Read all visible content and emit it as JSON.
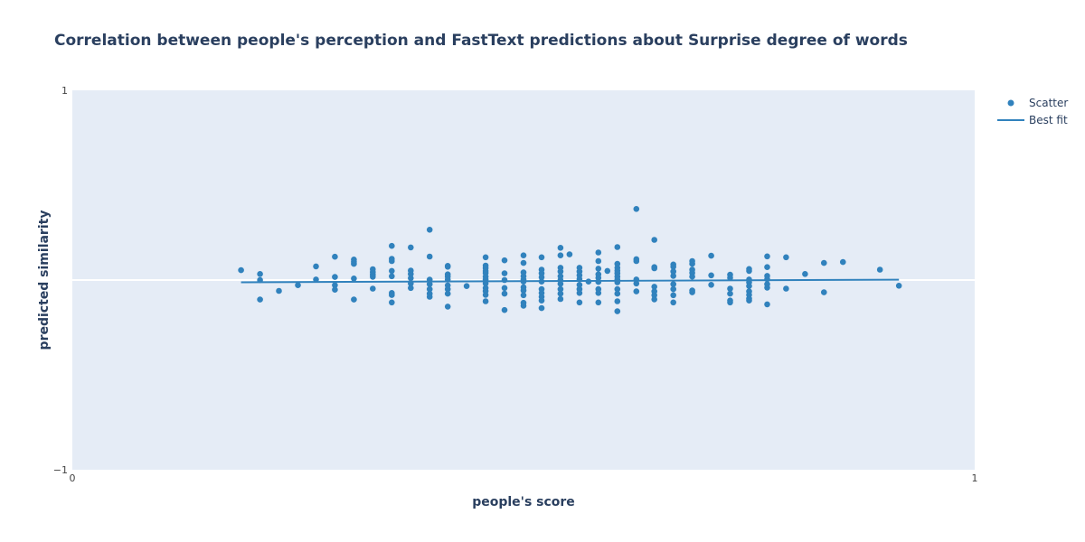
{
  "chart_data": {
    "type": "scatter",
    "title": "Correlation between people's perception and FastText predictions about Surprise degree of words",
    "xlabel": "people's score",
    "ylabel": "predicted similarity",
    "xlim": [
      0,
      1
    ],
    "ylim": [
      -1,
      1
    ],
    "x_ticks": [
      "0",
      "1"
    ],
    "y_ticks": [
      "1",
      "−1"
    ],
    "grid": false,
    "legend_position": "top-right",
    "colors": {
      "plot_bg": "#e5ecf6",
      "marker": "#3182bd",
      "zero_line": "#ffffff"
    },
    "series": [
      {
        "name": "Scatter",
        "mode": "markers",
        "points": [
          [
            0.187,
            0.052
          ],
          [
            0.208,
            0.032
          ],
          [
            0.208,
            0.0
          ],
          [
            0.208,
            -0.103
          ],
          [
            0.229,
            -0.057
          ],
          [
            0.25,
            -0.027
          ],
          [
            0.27,
            0.072
          ],
          [
            0.27,
            0.003
          ],
          [
            0.291,
            0.123
          ],
          [
            0.291,
            0.016
          ],
          [
            0.291,
            -0.027
          ],
          [
            0.291,
            -0.051
          ],
          [
            0.312,
            0.108
          ],
          [
            0.312,
            0.096
          ],
          [
            0.312,
            0.085
          ],
          [
            0.312,
            0.008
          ],
          [
            0.312,
            -0.103
          ],
          [
            0.333,
            0.057
          ],
          [
            0.333,
            0.042
          ],
          [
            0.333,
            0.028
          ],
          [
            0.333,
            0.017
          ],
          [
            0.333,
            -0.045
          ],
          [
            0.354,
            0.18
          ],
          [
            0.354,
            0.112
          ],
          [
            0.354,
            0.1
          ],
          [
            0.354,
            0.048
          ],
          [
            0.354,
            0.02
          ],
          [
            0.354,
            -0.068
          ],
          [
            0.354,
            -0.079
          ],
          [
            0.354,
            -0.118
          ],
          [
            0.375,
            0.172
          ],
          [
            0.375,
            0.05
          ],
          [
            0.375,
            0.032
          ],
          [
            0.375,
            0.01
          ],
          [
            0.375,
            -0.018
          ],
          [
            0.375,
            -0.042
          ],
          [
            0.396,
            0.265
          ],
          [
            0.396,
            0.124
          ],
          [
            0.396,
            0.002
          ],
          [
            0.396,
            -0.022
          ],
          [
            0.396,
            -0.048
          ],
          [
            0.396,
            -0.072
          ],
          [
            0.396,
            -0.088
          ],
          [
            0.416,
            0.075
          ],
          [
            0.416,
            0.07
          ],
          [
            0.416,
            0.03
          ],
          [
            0.416,
            0.018
          ],
          [
            0.416,
            0.003
          ],
          [
            0.416,
            -0.028
          ],
          [
            0.416,
            -0.048
          ],
          [
            0.416,
            -0.072
          ],
          [
            0.416,
            -0.14
          ],
          [
            0.437,
            -0.032
          ],
          [
            0.458,
            0.12
          ],
          [
            0.458,
            0.076
          ],
          [
            0.458,
            0.063
          ],
          [
            0.458,
            0.048
          ],
          [
            0.458,
            0.037
          ],
          [
            0.458,
            0.018
          ],
          [
            0.458,
            0.002
          ],
          [
            0.458,
            -0.018
          ],
          [
            0.458,
            -0.042
          ],
          [
            0.458,
            -0.058
          ],
          [
            0.458,
            -0.078
          ],
          [
            0.458,
            -0.112
          ],
          [
            0.479,
            0.104
          ],
          [
            0.479,
            0.035
          ],
          [
            0.479,
            0.0
          ],
          [
            0.479,
            -0.042
          ],
          [
            0.479,
            -0.072
          ],
          [
            0.479,
            -0.158
          ],
          [
            0.5,
            0.13
          ],
          [
            0.5,
            0.09
          ],
          [
            0.5,
            0.04
          ],
          [
            0.5,
            0.02
          ],
          [
            0.5,
            0.002
          ],
          [
            0.5,
            -0.008
          ],
          [
            0.5,
            -0.038
          ],
          [
            0.5,
            -0.055
          ],
          [
            0.5,
            -0.08
          ],
          [
            0.5,
            -0.12
          ],
          [
            0.5,
            -0.135
          ],
          [
            0.52,
            0.12
          ],
          [
            0.52,
            0.055
          ],
          [
            0.52,
            0.035
          ],
          [
            0.52,
            0.015
          ],
          [
            0.52,
            -0.008
          ],
          [
            0.52,
            -0.048
          ],
          [
            0.52,
            -0.068
          ],
          [
            0.52,
            -0.088
          ],
          [
            0.52,
            -0.108
          ],
          [
            0.52,
            -0.148
          ],
          [
            0.541,
            0.17
          ],
          [
            0.541,
            0.13
          ],
          [
            0.541,
            0.065
          ],
          [
            0.541,
            0.045
          ],
          [
            0.541,
            0.02
          ],
          [
            0.541,
            0.0
          ],
          [
            0.541,
            -0.02
          ],
          [
            0.541,
            -0.048
          ],
          [
            0.541,
            -0.072
          ],
          [
            0.541,
            -0.1
          ],
          [
            0.551,
            0.135
          ],
          [
            0.562,
            0.065
          ],
          [
            0.562,
            0.045
          ],
          [
            0.562,
            0.025
          ],
          [
            0.562,
            0.005
          ],
          [
            0.562,
            -0.025
          ],
          [
            0.562,
            -0.048
          ],
          [
            0.562,
            -0.068
          ],
          [
            0.562,
            -0.118
          ],
          [
            0.572,
            -0.008
          ],
          [
            0.583,
            0.145
          ],
          [
            0.583,
            0.1
          ],
          [
            0.583,
            0.06
          ],
          [
            0.583,
            0.03
          ],
          [
            0.583,
            0.012
          ],
          [
            0.583,
            -0.01
          ],
          [
            0.583,
            -0.048
          ],
          [
            0.583,
            -0.068
          ],
          [
            0.583,
            -0.118
          ],
          [
            0.593,
            0.048
          ],
          [
            0.604,
            0.174
          ],
          [
            0.604,
            0.085
          ],
          [
            0.604,
            0.065
          ],
          [
            0.604,
            0.05
          ],
          [
            0.604,
            0.035
          ],
          [
            0.604,
            0.018
          ],
          [
            0.604,
            0.003
          ],
          [
            0.604,
            -0.012
          ],
          [
            0.604,
            -0.048
          ],
          [
            0.604,
            -0.072
          ],
          [
            0.604,
            -0.112
          ],
          [
            0.604,
            -0.165
          ],
          [
            0.625,
            0.375
          ],
          [
            0.625,
            0.11
          ],
          [
            0.625,
            0.1
          ],
          [
            0.625,
            0.003
          ],
          [
            0.625,
            -0.018
          ],
          [
            0.625,
            -0.06
          ],
          [
            0.645,
            0.212
          ],
          [
            0.645,
            0.068
          ],
          [
            0.645,
            0.062
          ],
          [
            0.645,
            -0.035
          ],
          [
            0.645,
            -0.06
          ],
          [
            0.645,
            -0.08
          ],
          [
            0.645,
            -0.102
          ],
          [
            0.666,
            0.082
          ],
          [
            0.666,
            0.07
          ],
          [
            0.666,
            0.045
          ],
          [
            0.666,
            0.022
          ],
          [
            0.666,
            -0.022
          ],
          [
            0.666,
            -0.048
          ],
          [
            0.666,
            -0.08
          ],
          [
            0.666,
            -0.118
          ],
          [
            0.687,
            0.1
          ],
          [
            0.687,
            0.085
          ],
          [
            0.687,
            0.055
          ],
          [
            0.687,
            0.038
          ],
          [
            0.687,
            0.018
          ],
          [
            0.687,
            -0.055
          ],
          [
            0.687,
            -0.065
          ],
          [
            0.708,
            0.128
          ],
          [
            0.708,
            0.025
          ],
          [
            0.708,
            -0.025
          ],
          [
            0.729,
            0.028
          ],
          [
            0.729,
            0.012
          ],
          [
            0.729,
            -0.045
          ],
          [
            0.729,
            -0.072
          ],
          [
            0.729,
            -0.108
          ],
          [
            0.729,
            -0.118
          ],
          [
            0.75,
            0.058
          ],
          [
            0.75,
            0.048
          ],
          [
            0.75,
            0.003
          ],
          [
            0.75,
            -0.012
          ],
          [
            0.75,
            -0.032
          ],
          [
            0.75,
            -0.06
          ],
          [
            0.75,
            -0.078
          ],
          [
            0.75,
            -0.098
          ],
          [
            0.75,
            -0.108
          ],
          [
            0.77,
            0.125
          ],
          [
            0.77,
            0.068
          ],
          [
            0.77,
            0.022
          ],
          [
            0.77,
            0.005
          ],
          [
            0.77,
            -0.022
          ],
          [
            0.77,
            -0.04
          ],
          [
            0.77,
            -0.128
          ],
          [
            0.791,
            0.12
          ],
          [
            0.791,
            -0.045
          ],
          [
            0.812,
            0.032
          ],
          [
            0.833,
            0.09
          ],
          [
            0.833,
            -0.065
          ],
          [
            0.854,
            0.095
          ],
          [
            0.895,
            0.055
          ],
          [
            0.916,
            -0.03
          ]
        ]
      },
      {
        "name": "Best fit",
        "mode": "lines",
        "x": [
          0.187,
          0.916
        ],
        "y": [
          -0.012,
          0.002
        ]
      }
    ]
  }
}
